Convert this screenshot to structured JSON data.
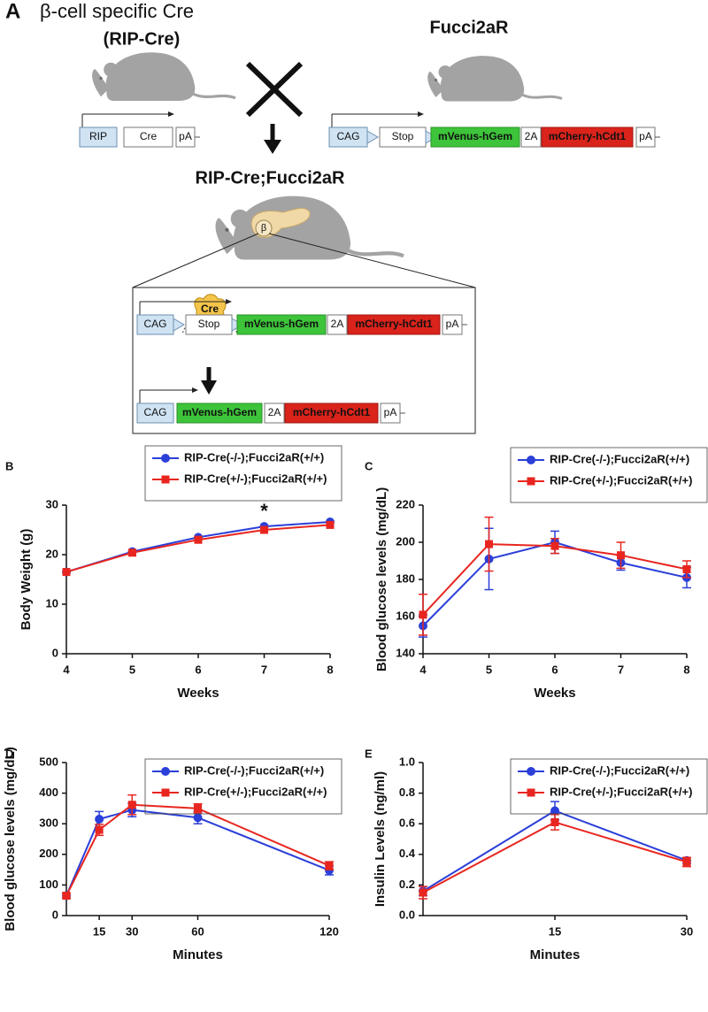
{
  "diagram": {
    "panel_label": "A",
    "left_title": "β-cell specific Cre",
    "left_subtitle": "(RIP-Cre)",
    "right_title": "Fucci2aR",
    "left_construct": [
      "RIP",
      "Cre",
      "pA"
    ],
    "right_construct": [
      "CAG",
      "Stop",
      "mVenus-hGem",
      "2A",
      "mCherry-hCdt1",
      "pA"
    ],
    "offspring_title": "RIP-Cre;Fucci2aR",
    "pancreas_label": "β",
    "inset": {
      "enzyme": "Cre",
      "construct_before": [
        "CAG",
        "Stop",
        "mVenus-hGem",
        "2A",
        "mCherry-hCdt1",
        "pA"
      ],
      "construct_after": [
        "CAG",
        "mVenus-hGem",
        "2A",
        "mCherry-hCdt1",
        "pA"
      ]
    }
  },
  "chart_data": [
    {
      "type": "line",
      "panel_label": "B",
      "xlabel": "Weeks",
      "ylabel": "Body Weight (g)",
      "x": [
        4,
        5,
        6,
        7,
        8
      ],
      "xlim": [
        4,
        8
      ],
      "xticks": [
        4,
        5,
        6,
        7,
        8
      ],
      "ylim": [
        0,
        30
      ],
      "yticks": [
        0,
        10,
        20,
        30
      ],
      "series": [
        {
          "name": "RIP-Cre(-/-);Fucci2aR(+/+)",
          "color": "#2b3fd9",
          "marker": "circle",
          "values": [
            16.5,
            20.6,
            23.5,
            25.7,
            26.6
          ]
        },
        {
          "name": "RIP-Cre(+/-);Fucci2aR(+/+)",
          "color": "#e8261f",
          "marker": "square",
          "values": [
            16.5,
            20.4,
            23.0,
            25.0,
            26.0
          ]
        }
      ],
      "annotations": [
        {
          "text": "*",
          "x": 7
        }
      ]
    },
    {
      "type": "line",
      "panel_label": "C",
      "xlabel": "Weeks",
      "ylabel": "Blood glucose levels (mg/dL)",
      "x": [
        4,
        5,
        6,
        7,
        8
      ],
      "xlim": [
        4,
        8
      ],
      "xticks": [
        4,
        5,
        6,
        7,
        8
      ],
      "ylim": [
        140,
        220
      ],
      "yticks": [
        140,
        160,
        180,
        200,
        220
      ],
      "series": [
        {
          "name": "RIP-Cre(-/-);Fucci2aR(+/+)",
          "color": "#2b3fd9",
          "marker": "circle",
          "values": [
            155,
            191,
            200,
            189,
            181
          ],
          "errors": [
            6,
            16.5,
            6,
            4,
            5.5
          ]
        },
        {
          "name": "RIP-Cre(+/-);Fucci2aR(+/+)",
          "color": "#e8261f",
          "marker": "square",
          "values": [
            161,
            199,
            198,
            193,
            185.5
          ],
          "errors": [
            11,
            14.5,
            4,
            7,
            4.5
          ]
        }
      ]
    },
    {
      "type": "line",
      "panel_label": "D",
      "xlabel": "Minutes",
      "ylabel": "Blood glucose levels (mg/dL)",
      "x": [
        0,
        15,
        30,
        60,
        120
      ],
      "xlim": [
        0,
        120
      ],
      "xticks": [
        15,
        30,
        60,
        120
      ],
      "ylim": [
        0,
        500
      ],
      "yticks": [
        0,
        100,
        200,
        300,
        400,
        500
      ],
      "series": [
        {
          "name": "RIP-Cre(-/-);Fucci2aR(+/+)",
          "color": "#2b3fd9",
          "marker": "circle",
          "values": [
            65,
            315,
            345,
            320,
            148
          ],
          "errors": [
            8,
            25,
            22,
            20,
            15
          ]
        },
        {
          "name": "RIP-Cre(+/-);Fucci2aR(+/+)",
          "color": "#e8261f",
          "marker": "square",
          "values": [
            65,
            280,
            362,
            350,
            163
          ],
          "errors": [
            8,
            18,
            32,
            15,
            13
          ]
        }
      ]
    },
    {
      "type": "line",
      "panel_label": "E",
      "xlabel": "Minutes",
      "ylabel": "Insulin Levels (ng/ml)",
      "x": [
        0,
        15,
        30
      ],
      "xlim": [
        0,
        30
      ],
      "xticks": [
        15,
        30
      ],
      "ylim": [
        0,
        1
      ],
      "yticks": [
        {
          "value": 0,
          "label": "0.0"
        },
        0.2,
        0.4,
        0.6,
        0.8,
        {
          "value": 1,
          "label": "1.0"
        }
      ],
      "series": [
        {
          "name": "RIP-Cre(-/-);Fucci2aR(+/+)",
          "color": "#2b3fd9",
          "marker": "circle",
          "values": [
            0.16,
            0.685,
            0.36
          ],
          "errors": [
            0.03,
            0.06,
            0.02
          ]
        },
        {
          "name": "RIP-Cre(+/-);Fucci2aR(+/+)",
          "color": "#e8261f",
          "marker": "square",
          "values": [
            0.15,
            0.61,
            0.35
          ],
          "errors": [
            0.04,
            0.05,
            0.03
          ]
        }
      ]
    }
  ]
}
